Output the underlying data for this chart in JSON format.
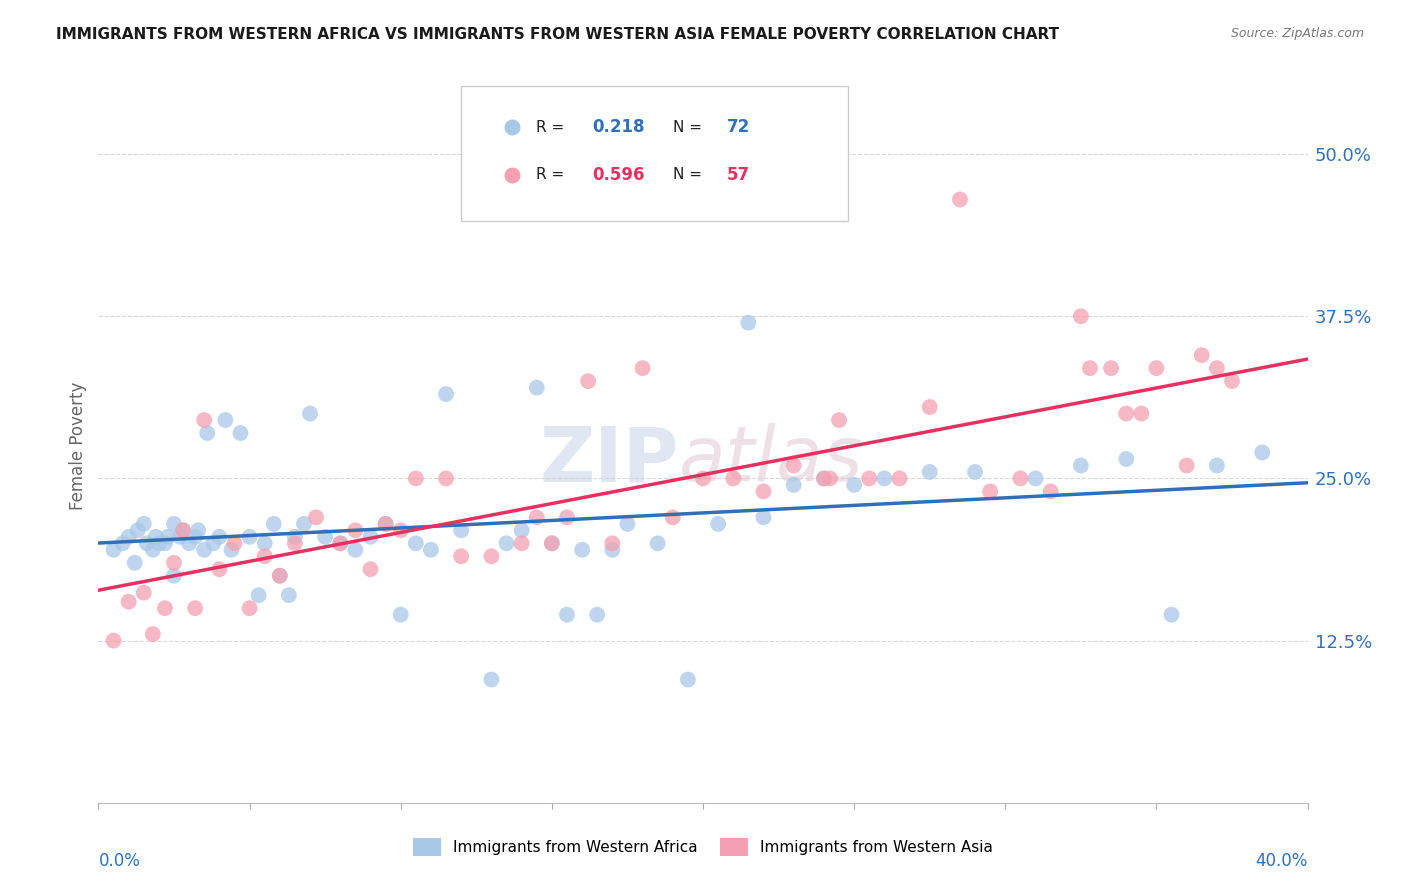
{
  "title": "IMMIGRANTS FROM WESTERN AFRICA VS IMMIGRANTS FROM WESTERN ASIA FEMALE POVERTY CORRELATION CHART",
  "source": "Source: ZipAtlas.com",
  "ylabel": "Female Poverty",
  "ytick_labels": [
    "12.5%",
    "25.0%",
    "37.5%",
    "50.0%"
  ],
  "ytick_values": [
    0.125,
    0.25,
    0.375,
    0.5
  ],
  "xlim": [
    0.0,
    0.4
  ],
  "ylim": [
    0.0,
    0.55
  ],
  "r1": "0.218",
  "n1": "72",
  "r2": "0.596",
  "n2": "57",
  "series1_color": "#a8c8e8",
  "series2_color": "#f4a0b0",
  "series1_line_color": "#3070b8",
  "series2_line_color": "#e83060",
  "series1_label": "Immigrants from Western Africa",
  "series2_label": "Immigrants from Western Asia",
  "r_n_color1": "#3070b8",
  "r_n_color2": "#e83060",
  "watermark_color1": "#c8d4e8",
  "watermark_color2": "#e0c8d4",
  "background": "#ffffff",
  "grid_color": "#d8d8d8",
  "series1_x": [
    0.005,
    0.008,
    0.01,
    0.012,
    0.013,
    0.015,
    0.016,
    0.018,
    0.019,
    0.02,
    0.022,
    0.023,
    0.025,
    0.025,
    0.027,
    0.028,
    0.03,
    0.032,
    0.033,
    0.035,
    0.036,
    0.038,
    0.04,
    0.042,
    0.044,
    0.047,
    0.05,
    0.053,
    0.055,
    0.058,
    0.06,
    0.063,
    0.065,
    0.068,
    0.07,
    0.075,
    0.08,
    0.085,
    0.09,
    0.095,
    0.1,
    0.105,
    0.11,
    0.115,
    0.12,
    0.13,
    0.135,
    0.14,
    0.145,
    0.15,
    0.155,
    0.16,
    0.165,
    0.17,
    0.175,
    0.185,
    0.195,
    0.205,
    0.215,
    0.22,
    0.23,
    0.24,
    0.25,
    0.26,
    0.275,
    0.29,
    0.31,
    0.325,
    0.34,
    0.355,
    0.37,
    0.385
  ],
  "series1_y": [
    0.195,
    0.2,
    0.205,
    0.185,
    0.21,
    0.215,
    0.2,
    0.195,
    0.205,
    0.2,
    0.2,
    0.205,
    0.175,
    0.215,
    0.205,
    0.21,
    0.2,
    0.205,
    0.21,
    0.195,
    0.285,
    0.2,
    0.205,
    0.295,
    0.195,
    0.285,
    0.205,
    0.16,
    0.2,
    0.215,
    0.175,
    0.16,
    0.205,
    0.215,
    0.3,
    0.205,
    0.2,
    0.195,
    0.205,
    0.215,
    0.145,
    0.2,
    0.195,
    0.315,
    0.21,
    0.095,
    0.2,
    0.21,
    0.32,
    0.2,
    0.145,
    0.195,
    0.145,
    0.195,
    0.215,
    0.2,
    0.095,
    0.215,
    0.37,
    0.22,
    0.245,
    0.25,
    0.245,
    0.25,
    0.255,
    0.255,
    0.25,
    0.26,
    0.265,
    0.145,
    0.26,
    0.27
  ],
  "series2_x": [
    0.005,
    0.01,
    0.015,
    0.018,
    0.022,
    0.025,
    0.028,
    0.032,
    0.035,
    0.04,
    0.045,
    0.05,
    0.055,
    0.06,
    0.065,
    0.072,
    0.08,
    0.085,
    0.09,
    0.095,
    0.1,
    0.105,
    0.115,
    0.12,
    0.13,
    0.14,
    0.145,
    0.15,
    0.155,
    0.162,
    0.17,
    0.18,
    0.19,
    0.2,
    0.21,
    0.22,
    0.23,
    0.24,
    0.245,
    0.255,
    0.265,
    0.275,
    0.285,
    0.295,
    0.305,
    0.315,
    0.325,
    0.335,
    0.34,
    0.35,
    0.36,
    0.37,
    0.242,
    0.328,
    0.345,
    0.365,
    0.375
  ],
  "series2_y": [
    0.125,
    0.155,
    0.162,
    0.13,
    0.15,
    0.185,
    0.21,
    0.15,
    0.295,
    0.18,
    0.2,
    0.15,
    0.19,
    0.175,
    0.2,
    0.22,
    0.2,
    0.21,
    0.18,
    0.215,
    0.21,
    0.25,
    0.25,
    0.19,
    0.19,
    0.2,
    0.22,
    0.2,
    0.22,
    0.325,
    0.2,
    0.335,
    0.22,
    0.25,
    0.25,
    0.24,
    0.26,
    0.25,
    0.295,
    0.25,
    0.25,
    0.305,
    0.465,
    0.24,
    0.25,
    0.24,
    0.375,
    0.335,
    0.3,
    0.335,
    0.26,
    0.335,
    0.25,
    0.335,
    0.3,
    0.345,
    0.325
  ]
}
